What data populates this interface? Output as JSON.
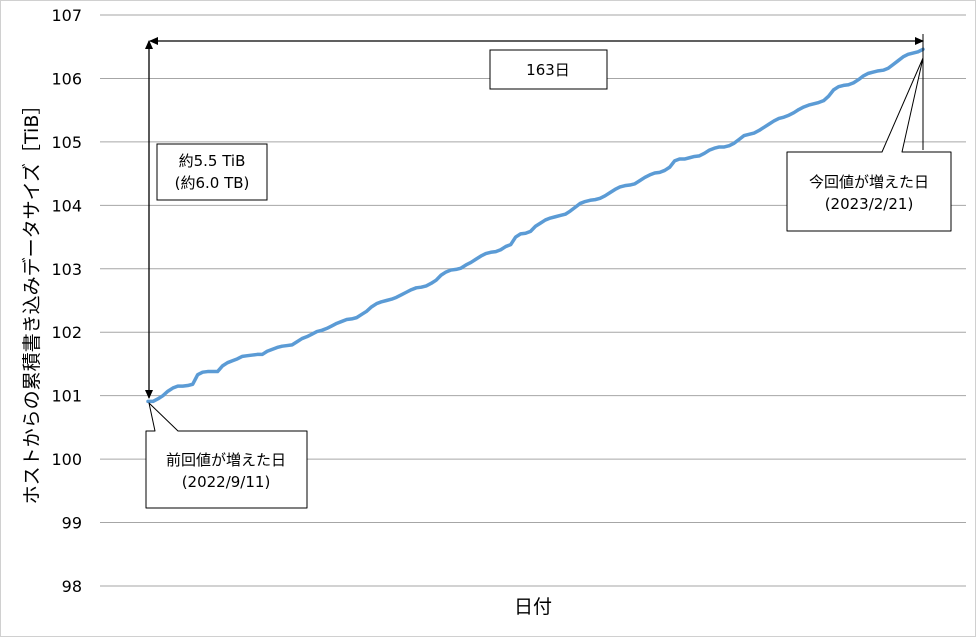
{
  "chart_data": {
    "type": "line",
    "title": "",
    "xlabel": "日付",
    "ylabel": "ホストからの累積書き込みデータサイズ［TiB］",
    "ylim": [
      98,
      107
    ],
    "yticks": [
      "98",
      "99",
      "100",
      "101",
      "102",
      "103",
      "104",
      "105",
      "106",
      "107"
    ],
    "grid": true,
    "legend": "none",
    "series": [
      {
        "color": "#5b9bd5",
        "x_start": "2022/9/11",
        "x_end": "2023/2/21",
        "values": [
          100.91,
          100.91,
          100.95,
          101.0,
          101.07,
          101.12,
          101.15,
          101.15,
          101.16,
          101.18,
          101.33,
          101.37,
          101.38,
          101.38,
          101.38,
          101.47,
          101.52,
          101.55,
          101.58,
          101.62,
          101.63,
          101.64,
          101.65,
          101.65,
          101.7,
          101.73,
          101.76,
          101.78,
          101.79,
          101.8,
          101.85,
          101.9,
          101.93,
          101.97,
          102.01,
          102.03,
          102.06,
          102.1,
          102.14,
          102.17,
          102.2,
          102.21,
          102.23,
          102.28,
          102.33,
          102.4,
          102.45,
          102.48,
          102.5,
          102.52,
          102.55,
          102.59,
          102.63,
          102.67,
          102.7,
          102.71,
          102.73,
          102.77,
          102.82,
          102.9,
          102.95,
          102.98,
          102.99,
          103.01,
          103.06,
          103.1,
          103.15,
          103.2,
          103.24,
          103.26,
          103.27,
          103.3,
          103.35,
          103.38,
          103.5,
          103.55,
          103.56,
          103.59,
          103.67,
          103.72,
          103.77,
          103.8,
          103.82,
          103.84,
          103.86,
          103.91,
          103.97,
          104.03,
          104.06,
          104.08,
          104.09,
          104.11,
          104.15,
          104.2,
          104.25,
          104.29,
          104.31,
          104.32,
          104.34,
          104.39,
          104.44,
          104.48,
          104.51,
          104.52,
          104.55,
          104.6,
          104.7,
          104.73,
          104.73,
          104.75,
          104.77,
          104.78,
          104.82,
          104.87,
          104.9,
          104.92,
          104.92,
          104.94,
          104.98,
          105.04,
          105.1,
          105.12,
          105.14,
          105.18,
          105.23,
          105.28,
          105.33,
          105.37,
          105.39,
          105.42,
          105.46,
          105.51,
          105.55,
          105.58,
          105.6,
          105.62,
          105.65,
          105.72,
          105.82,
          105.87,
          105.89,
          105.9,
          105.93,
          105.98,
          106.04,
          106.08,
          106.1,
          106.12,
          106.13,
          106.16,
          106.22,
          106.28,
          106.34,
          106.38,
          106.4,
          106.42,
          106.46
        ]
      }
    ],
    "annotations": {
      "span_label": "163日",
      "delta_label_1": "約5.5 TiB",
      "delta_label_2": "(約6.0 TB)",
      "start_label_1": "前回値が増えた日",
      "start_label_2": "(2022/9/11)",
      "end_label_1": "今回値が増えた日",
      "end_label_2": "(2023/2/21)"
    }
  }
}
